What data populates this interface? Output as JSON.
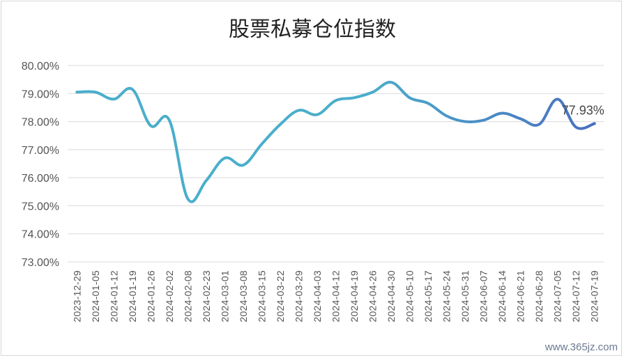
{
  "chart_data": {
    "type": "line",
    "title": "股票私募仓位指数",
    "ylim": [
      73.0,
      80.0
    ],
    "y_ticks": [
      "80.00%",
      "79.00%",
      "78.00%",
      "77.00%",
      "76.00%",
      "75.00%",
      "74.00%",
      "73.00%"
    ],
    "y_tick_values": [
      80,
      79,
      78,
      77,
      76,
      75,
      74,
      73
    ],
    "grid": "horizontal",
    "line_color_start": "#4aaecb",
    "line_color_end": "#4a6fc0",
    "categories": [
      "2023-12-29",
      "2024-01-05",
      "2024-01-12",
      "2024-01-19",
      "2024-01-26",
      "2024-02-02",
      "2024-02-08",
      "2024-02-23",
      "2024-03-01",
      "2024-03-08",
      "2024-03-15",
      "2024-03-22",
      "2024-03-29",
      "2024-04-03",
      "2024-04-12",
      "2024-04-19",
      "2024-04-26",
      "2024-04-30",
      "2024-05-10",
      "2024-05-17",
      "2024-05-24",
      "2024-05-31",
      "2024-06-07",
      "2024-06-14",
      "2024-06-21",
      "2024-06-28",
      "2024-07-05",
      "2024-07-12",
      "2024-07-19"
    ],
    "values": [
      79.05,
      79.05,
      78.8,
      79.15,
      77.85,
      78.05,
      75.25,
      75.9,
      76.7,
      76.45,
      77.2,
      77.9,
      78.4,
      78.25,
      78.75,
      78.85,
      79.05,
      79.4,
      78.85,
      78.65,
      78.2,
      78.0,
      78.05,
      78.3,
      78.1,
      77.9,
      78.8,
      77.8,
      77.93
    ],
    "end_label": "77.93%"
  },
  "watermark": "www.365jz.com"
}
